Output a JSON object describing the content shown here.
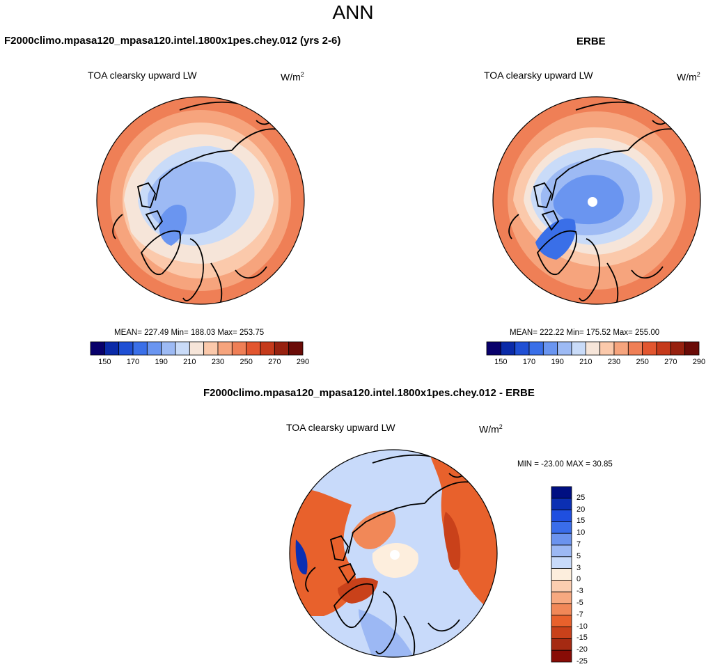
{
  "main_title": "ANN",
  "panels": [
    {
      "id": "test",
      "case_title": "F2000climo.mpasa120_mpasa120.intel.1800x1pes.chey.012 (yrs 2-6)",
      "var_title": "TOA clearsky upward LW",
      "units_base": "W/m",
      "units_exp": "2",
      "stats": "MEAN= 227.49  Min= 188.03  Max= 253.75"
    },
    {
      "id": "obs",
      "case_title": "ERBE",
      "var_title": "TOA clearsky upward LW",
      "units_base": "W/m",
      "units_exp": "2",
      "stats": "MEAN= 222.22  Min= 175.52  Max= 255.00"
    },
    {
      "id": "diff",
      "case_title": "F2000climo.mpasa120_mpasa120.intel.1800x1pes.chey.012 - ERBE",
      "var_title": "TOA clearsky upward LW",
      "units_base": "W/m",
      "units_exp": "2",
      "stats": "MIN = -23.00 MAX =  30.85"
    }
  ],
  "abs_colorbar": {
    "colors": [
      "#08006b",
      "#0a2aa8",
      "#1f4fd4",
      "#3a6fe8",
      "#6a95f0",
      "#9dbaf4",
      "#c9dbf8",
      "#f6e5d9",
      "#fbc9ab",
      "#f6a47d",
      "#ef7f56",
      "#e2562f",
      "#c53a1b",
      "#97210f",
      "#6a0b07"
    ],
    "labels": [
      "150",
      "170",
      "190",
      "210",
      "230",
      "250",
      "270",
      "290"
    ]
  },
  "diff_colorbar": {
    "colors": [
      "#000f82",
      "#0b2fb3",
      "#1f4fe0",
      "#3a6dea",
      "#6b93ee",
      "#9cb8f4",
      "#c8dafa",
      "#fdeedd",
      "#fbcdb0",
      "#f7a980",
      "#f18858",
      "#e8612c",
      "#c9411a",
      "#a52a12",
      "#880c06"
    ],
    "labels": [
      "25",
      "20",
      "15",
      "10",
      "7",
      "5",
      "3",
      "0",
      "-3",
      "-5",
      "-7",
      "-10",
      "-15",
      "-20",
      "-25"
    ]
  }
}
